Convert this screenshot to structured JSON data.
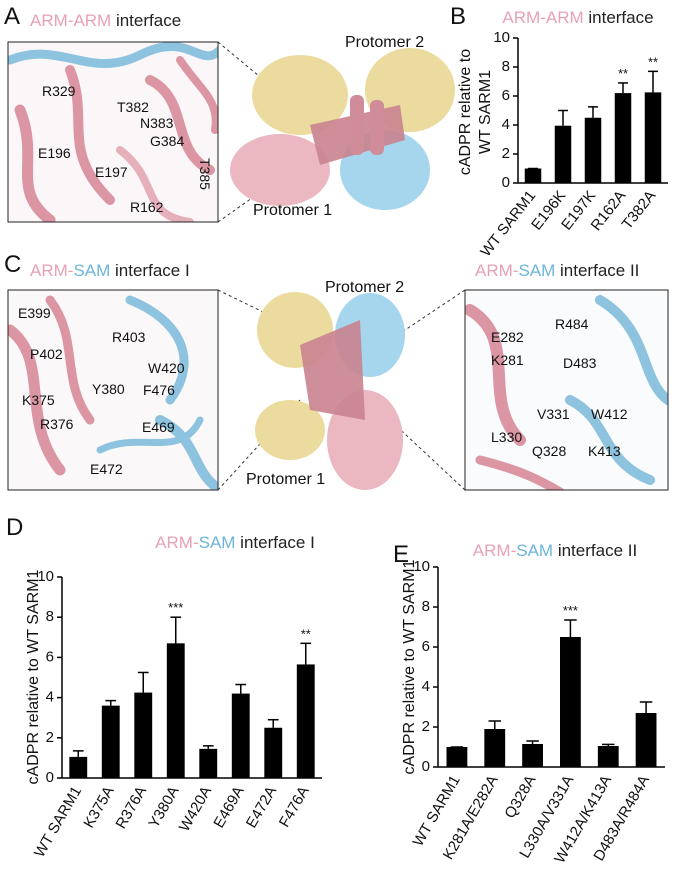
{
  "structures": [
    {
      "panel": "A",
      "insets": [
        {
          "title": [
            {
              "text": "ARM-ARM",
              "color": "#e8a0b4"
            },
            {
              "text": " interface",
              "color": "#222222"
            }
          ],
          "labels": [
            "R329",
            "T382",
            "N383",
            "G384",
            "T385",
            "E196",
            "E197",
            "R162"
          ]
        }
      ],
      "protomers": [
        "Protomer 2",
        "Protomer 1"
      ]
    },
    {
      "panel": "C",
      "insets": [
        {
          "title": [
            {
              "text": "ARM",
              "color": "#e8a0b4"
            },
            {
              "text": "-",
              "color": "#e8a0b4"
            },
            {
              "text": "SAM",
              "color": "#6bb5dc"
            },
            {
              "text": " interface I",
              "color": "#222222"
            }
          ],
          "labels": [
            "E399",
            "P402",
            "R403",
            "W420",
            "Y380",
            "F476",
            "K375",
            "R376",
            "E469",
            "E472"
          ]
        },
        {
          "title": [
            {
              "text": "ARM",
              "color": "#e8a0b4"
            },
            {
              "text": "-",
              "color": "#e8a0b4"
            },
            {
              "text": "SAM",
              "color": "#6bb5dc"
            },
            {
              "text": " interface II",
              "color": "#222222"
            }
          ],
          "labels": [
            "E282",
            "R484",
            "K281",
            "D483",
            "V331",
            "W412",
            "L330",
            "Q328",
            "K413"
          ]
        }
      ],
      "protomers": [
        "Protomer 2",
        "Protomer 1"
      ]
    }
  ],
  "chart_data": [
    {
      "type": "bar",
      "panel": "B",
      "title": [
        {
          "text": "ARM-ARM",
          "color": "#e8a0b4"
        },
        {
          "text": " interface",
          "color": "#222222"
        }
      ],
      "ylabel": [
        "cADPR relative to",
        "WT SARM1"
      ],
      "categories": [
        "WT SARM1",
        "E196K",
        "E197K",
        "R162A",
        "T382A"
      ],
      "values": [
        1.0,
        3.95,
        4.5,
        6.2,
        6.25
      ],
      "errors": [
        0,
        1.05,
        0.75,
        0.7,
        1.45
      ],
      "significance": [
        null,
        null,
        null,
        "**",
        "**"
      ],
      "color": "#000000",
      "ylim": [
        0,
        10
      ],
      "yticks": [
        0,
        2,
        4,
        6,
        8,
        10
      ]
    },
    {
      "type": "bar",
      "panel": "D",
      "title": [
        {
          "text": "ARM",
          "color": "#e8a0b4"
        },
        {
          "text": "-",
          "color": "#e8a0b4"
        },
        {
          "text": "SAM",
          "color": "#6bb5dc"
        },
        {
          "text": " interface I",
          "color": "#222222"
        }
      ],
      "ylabel": [
        "cADPR relative to WT SARM1"
      ],
      "categories": [
        "WT SARM1",
        "K375A",
        "R376A",
        "Y380A",
        "W420A",
        "E469A",
        "E472A",
        "F476A"
      ],
      "values": [
        1.05,
        3.6,
        4.25,
        6.7,
        1.45,
        4.2,
        2.5,
        5.65
      ],
      "errors": [
        0.3,
        0.25,
        1.0,
        1.3,
        0.15,
        0.45,
        0.4,
        1.05
      ],
      "significance": [
        null,
        null,
        null,
        "***",
        null,
        null,
        null,
        "**"
      ],
      "color": "#000000",
      "ylim": [
        0,
        10
      ],
      "yticks": [
        0,
        2,
        4,
        6,
        8,
        10
      ]
    },
    {
      "type": "bar",
      "panel": "E",
      "title": [
        {
          "text": "ARM",
          "color": "#e8a0b4"
        },
        {
          "text": "-",
          "color": "#e8a0b4"
        },
        {
          "text": "SAM",
          "color": "#6bb5dc"
        },
        {
          "text": " interface II",
          "color": "#222222"
        }
      ],
      "ylabel": [
        "cADPR relative to WT SARM1"
      ],
      "categories": [
        "WT SARM1",
        "K281A/E282A",
        "Q328A",
        "L330A/V331A",
        "W412A/K413A",
        "D483A/R484A"
      ],
      "values": [
        1.0,
        1.9,
        1.15,
        6.5,
        1.05,
        2.7
      ],
      "errors": [
        0,
        0.4,
        0.15,
        0.85,
        0.08,
        0.55
      ],
      "significance": [
        null,
        null,
        null,
        "***",
        null,
        null
      ],
      "color": "#000000",
      "ylim": [
        0,
        10
      ],
      "yticks": [
        0,
        2,
        4,
        6,
        8,
        10
      ]
    }
  ]
}
